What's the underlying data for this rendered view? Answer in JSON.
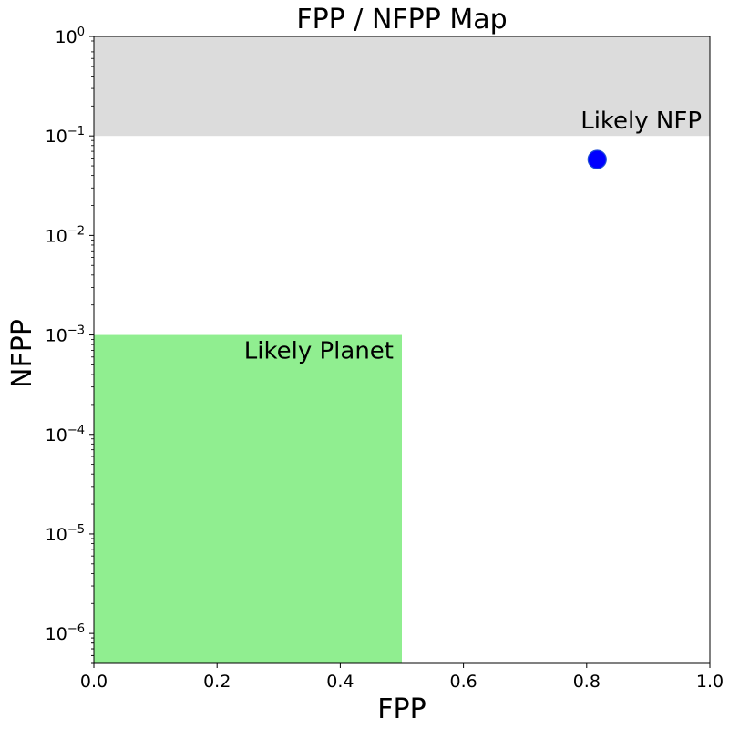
{
  "chart_data": {
    "type": "scatter",
    "title": "FPP / NFPP Map",
    "xlabel": "FPP",
    "ylabel": "NFPP",
    "xlim": [
      0.0,
      1.0
    ],
    "ylim": [
      5e-07,
      1.0
    ],
    "yscale": "log",
    "grid": false,
    "x_ticks": [
      "0.0",
      "0.2",
      "0.4",
      "0.6",
      "0.8",
      "1.0"
    ],
    "y_ticks": [
      {
        "base": "10",
        "exp": "0"
      },
      {
        "base": "10",
        "exp": "−1"
      },
      {
        "base": "10",
        "exp": "−2"
      },
      {
        "base": "10",
        "exp": "−3"
      },
      {
        "base": "10",
        "exp": "−4"
      },
      {
        "base": "10",
        "exp": "−5"
      },
      {
        "base": "10",
        "exp": "−6"
      }
    ],
    "regions": [
      {
        "label": "Likely NFP",
        "x": [
          0.0,
          1.0
        ],
        "y": [
          0.1,
          1.0
        ],
        "color": "#dcdcdc"
      },
      {
        "label": "Likely Planet",
        "x": [
          0.0,
          0.5
        ],
        "y": [
          5e-07,
          0.001
        ],
        "color": "#90ee90"
      }
    ],
    "points": [
      {
        "x": 0.817,
        "y": 0.058,
        "color": "#0000ff"
      }
    ]
  }
}
